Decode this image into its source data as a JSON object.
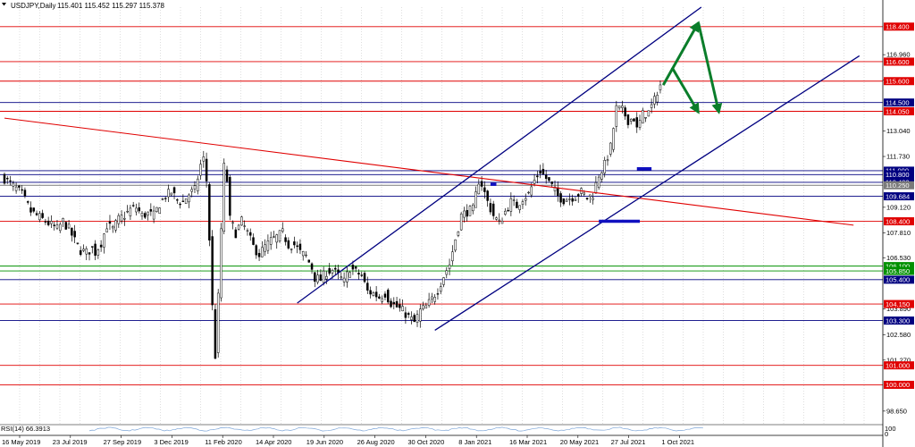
{
  "header": {
    "symbol": "USDJPY,Daily",
    "quote": "115.401 115.452 115.297 115.378"
  },
  "rsi": {
    "label": "RSI(14) 66.3913",
    "scale_top": "100",
    "scale_bottom": "0"
  },
  "colors": {
    "red_level": "#e00000",
    "blue_level": "#000080",
    "green_level": "#009000",
    "gray_level": "#7a7a7a",
    "arrow": "#0a7d2a",
    "candle": "#000000"
  },
  "chart_data": {
    "type": "candlestick",
    "symbol": "USDJPY",
    "timeframe": "Daily",
    "ylim": [
      98.0,
      119.4
    ],
    "y_ticks": [
      "116.960",
      "115.650",
      "113.040",
      "111.730",
      "109.120",
      "107.810",
      "106.530",
      "103.890",
      "102.580",
      "101.270",
      "98.650"
    ],
    "x_ticks": [
      "16 May 2019",
      "23 Jul 2019",
      "27 Sep 2019",
      "3 Dec 2019",
      "11 Feb 2020",
      "14 Apr 2020",
      "19 Jun 2020",
      "26 Aug 2020",
      "30 Oct 2020",
      "8 Jan 2021",
      "16 Mar 2021",
      "20 May 2021",
      "27 Jul 2021",
      "1 Oct 2021"
    ],
    "levels": [
      {
        "label": "118.400",
        "value": 118.4,
        "color": "red"
      },
      {
        "label": "116.600",
        "value": 116.6,
        "color": "red"
      },
      {
        "label": "115.600",
        "value": 115.6,
        "color": "red"
      },
      {
        "label": "114.500",
        "value": 114.5,
        "color": "blue"
      },
      {
        "label": "114.050",
        "value": 114.05,
        "color": "red"
      },
      {
        "label": "111.000",
        "value": 111.0,
        "color": "blue"
      },
      {
        "label": "110.800",
        "value": 110.8,
        "color": "blue"
      },
      {
        "label": "110.402",
        "value": 110.402,
        "color": "blue"
      },
      {
        "label": "110.250",
        "value": 110.25,
        "color": "gray"
      },
      {
        "label": "109.684",
        "value": 109.684,
        "color": "blue"
      },
      {
        "label": "108.400",
        "value": 108.4,
        "color": "red"
      },
      {
        "label": "106.100",
        "value": 106.1,
        "color": "green"
      },
      {
        "label": "105.850",
        "value": 105.85,
        "color": "green"
      },
      {
        "label": "105.400",
        "value": 105.4,
        "color": "blue"
      },
      {
        "label": "104.150",
        "value": 104.15,
        "color": "red"
      },
      {
        "label": "103.300",
        "value": 103.3,
        "color": "blue"
      },
      {
        "label": "101.000",
        "value": 101.0,
        "color": "red"
      },
      {
        "label": "100.000",
        "value": 100.0,
        "color": "red"
      }
    ],
    "close_series": [
      [
        0,
        110.6
      ],
      [
        3,
        110.2
      ],
      [
        6,
        109.8
      ],
      [
        9,
        108.9
      ],
      [
        12,
        108.6
      ],
      [
        15,
        108.3
      ],
      [
        18,
        108.0
      ],
      [
        20,
        108.4
      ],
      [
        22,
        108.0
      ],
      [
        24,
        107.4
      ],
      [
        26,
        106.9
      ],
      [
        28,
        106.8
      ],
      [
        30,
        107.0
      ],
      [
        31,
        106.8
      ],
      [
        33,
        107.3
      ],
      [
        35,
        108.2
      ],
      [
        37,
        108.0
      ],
      [
        39,
        108.5
      ],
      [
        41,
        108.7
      ],
      [
        43,
        109.0
      ],
      [
        45,
        109.1
      ],
      [
        47,
        108.7
      ],
      [
        49,
        108.8
      ],
      [
        51,
        108.7
      ],
      [
        53,
        109.3
      ],
      [
        55,
        109.7
      ],
      [
        57,
        109.9
      ],
      [
        59,
        109.5
      ],
      [
        61,
        109.4
      ],
      [
        63,
        109.8
      ],
      [
        65,
        110.0
      ],
      [
        67,
        111.3
      ],
      [
        68,
        111.6
      ],
      [
        69,
        110.5
      ],
      [
        70,
        107.5
      ],
      [
        71,
        104.0
      ],
      [
        72,
        101.5
      ],
      [
        73,
        104.5
      ],
      [
        74,
        108.0
      ],
      [
        75,
        111.2
      ],
      [
        76,
        110.5
      ],
      [
        77,
        108.5
      ],
      [
        79,
        107.8
      ],
      [
        81,
        108.4
      ],
      [
        83,
        107.8
      ],
      [
        85,
        107.1
      ],
      [
        87,
        106.7
      ],
      [
        89,
        107.1
      ],
      [
        91,
        107.4
      ],
      [
        93,
        107.6
      ],
      [
        95,
        107.8
      ],
      [
        97,
        107.2
      ],
      [
        99,
        107.2
      ],
      [
        101,
        106.8
      ],
      [
        103,
        106.6
      ],
      [
        105,
        106.0
      ],
      [
        106,
        105.5
      ],
      [
        108,
        105.4
      ],
      [
        110,
        105.8
      ],
      [
        112,
        105.9
      ],
      [
        114,
        105.6
      ],
      [
        116,
        105.3
      ],
      [
        118,
        106.0
      ],
      [
        120,
        105.8
      ],
      [
        122,
        105.6
      ],
      [
        124,
        104.8
      ],
      [
        126,
        104.7
      ],
      [
        128,
        104.5
      ],
      [
        130,
        104.7
      ],
      [
        132,
        104.2
      ],
      [
        134,
        104.0
      ],
      [
        136,
        103.8
      ],
      [
        138,
        103.5
      ],
      [
        140,
        103.2
      ],
      [
        142,
        103.8
      ],
      [
        144,
        104.0
      ],
      [
        146,
        104.4
      ],
      [
        148,
        104.9
      ],
      [
        150,
        105.6
      ],
      [
        152,
        106.2
      ],
      [
        154,
        107.5
      ],
      [
        156,
        108.7
      ],
      [
        158,
        108.9
      ],
      [
        160,
        109.0
      ],
      [
        162,
        110.5
      ],
      [
        163,
        110.3
      ],
      [
        165,
        109.4
      ],
      [
        167,
        108.7
      ],
      [
        169,
        108.3
      ],
      [
        171,
        108.9
      ],
      [
        173,
        109.4
      ],
      [
        175,
        109.2
      ],
      [
        177,
        109.6
      ],
      [
        179,
        109.8
      ],
      [
        181,
        110.5
      ],
      [
        183,
        111.0
      ],
      [
        185,
        110.6
      ],
      [
        187,
        110.2
      ],
      [
        189,
        109.7
      ],
      [
        191,
        109.5
      ],
      [
        193,
        109.6
      ],
      [
        195,
        109.7
      ],
      [
        197,
        109.9
      ],
      [
        199,
        109.6
      ],
      [
        201,
        109.8
      ],
      [
        203,
        110.8
      ],
      [
        205,
        111.3
      ],
      [
        207,
        112.2
      ],
      [
        208,
        113.2
      ],
      [
        209,
        114.2
      ],
      [
        211,
        114.1
      ],
      [
        213,
        113.6
      ],
      [
        215,
        113.7
      ],
      [
        216,
        113.1
      ],
      [
        218,
        113.9
      ],
      [
        220,
        114.0
      ],
      [
        222,
        114.6
      ],
      [
        223,
        115.1
      ],
      [
        224,
        115.4
      ]
    ],
    "channel_upper": [
      [
        100,
        104.2
      ],
      [
        238,
        119.4
      ]
    ],
    "channel_lower": [
      [
        147,
        102.8
      ],
      [
        292,
        116.9
      ]
    ],
    "trendline": [
      [
        0,
        113.7
      ],
      [
        290,
        108.2
      ]
    ],
    "arrows": [
      {
        "from": [
          225,
          115.4
        ],
        "to": [
          237,
          118.6
        ]
      },
      {
        "from": [
          228,
          116.3
        ],
        "to": [
          237,
          114.0
        ]
      },
      {
        "from": [
          237,
          118.6
        ],
        "to": [
          244,
          114.0
        ]
      }
    ],
    "markers": [
      {
        "x0": 216,
        "x1": 221,
        "y": 111.1
      },
      {
        "x0": 203,
        "x1": 217,
        "y": 108.4
      },
      {
        "x0": 166,
        "x1": 168,
        "y": 110.3
      }
    ]
  }
}
